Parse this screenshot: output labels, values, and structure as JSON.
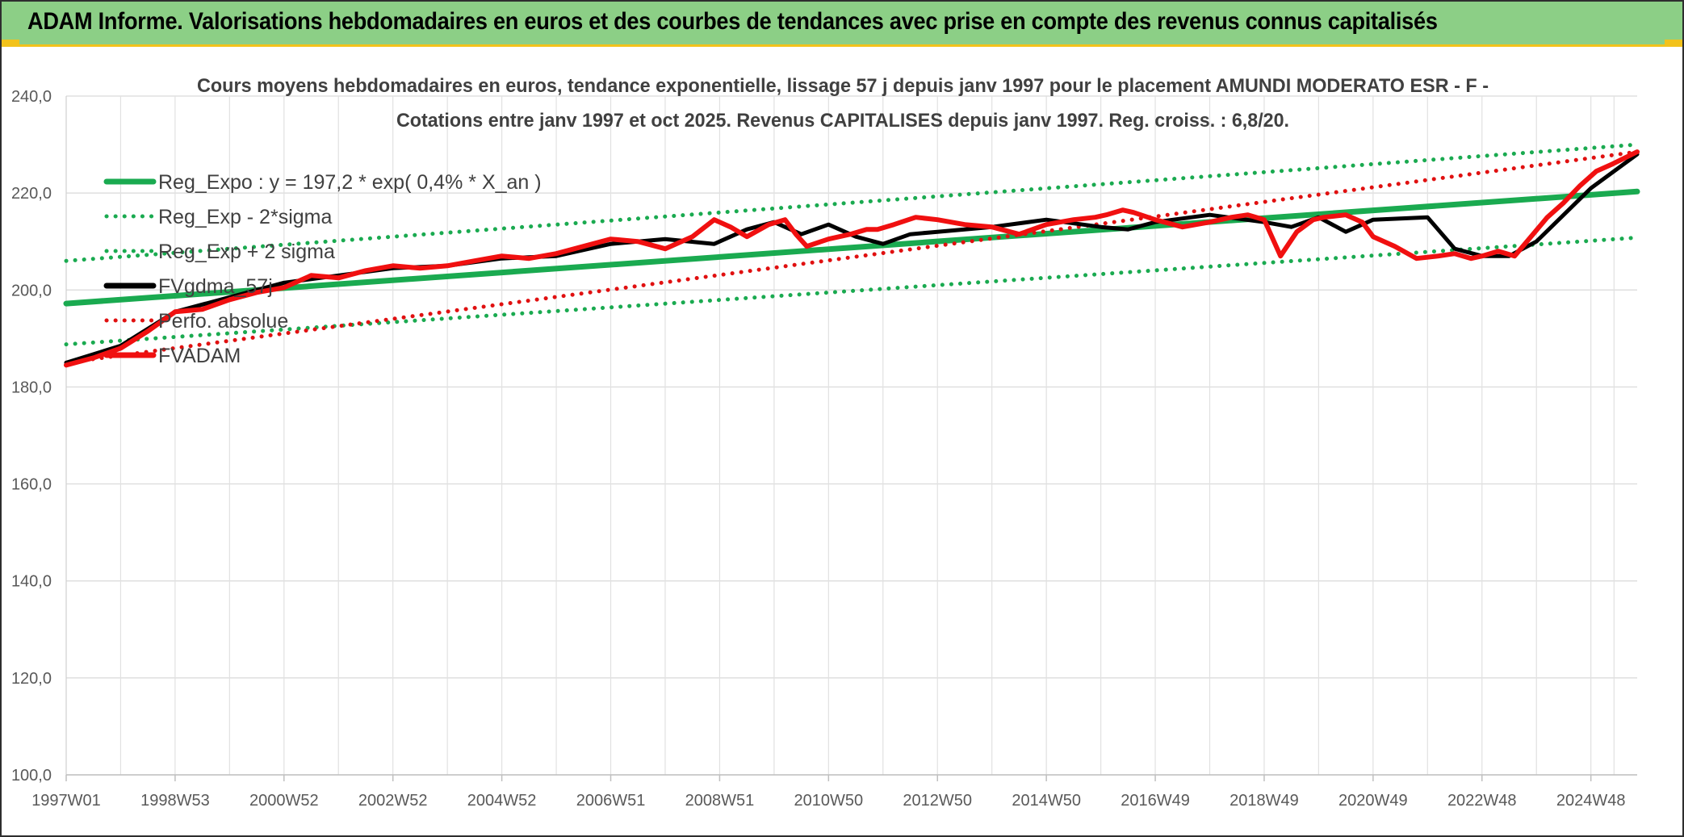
{
  "header": {
    "title": "ADAM Informe. Valorisations hebdomadaires en euros et des courbes de tendances avec prise en compte des revenus connus capitalisés"
  },
  "chart_data": {
    "type": "line",
    "title": "Cours moyens hebdomadaires en euros, tendance exponentielle, lissage 57 j depuis janv 1997 pour le placement AMUNDI MODERATO ESR - F -",
    "subtitle": "Cotations entre janv 1997 et oct 2025. Revenus CAPITALISES depuis janv 1997. Reg. croiss. : 6,8/20.",
    "xlabel": "",
    "ylabel": "",
    "ylim": [
      100,
      240
    ],
    "yticks": [
      "100,0",
      "120,0",
      "140,0",
      "160,0",
      "180,0",
      "200,0",
      "220,0",
      "240,0"
    ],
    "x_range": [
      1997.0,
      2025.85
    ],
    "xticks": [
      {
        "label": "1997W01",
        "x": 1997.0
      },
      {
        "label": "1998W53",
        "x": 1999.0
      },
      {
        "label": "2000W52",
        "x": 2001.0
      },
      {
        "label": "2002W52",
        "x": 2003.0
      },
      {
        "label": "2004W52",
        "x": 2005.0
      },
      {
        "label": "2006W51",
        "x": 2007.0
      },
      {
        "label": "2008W51",
        "x": 2009.0
      },
      {
        "label": "2010W50",
        "x": 2011.0
      },
      {
        "label": "2012W50",
        "x": 2013.0
      },
      {
        "label": "2014W50",
        "x": 2015.0
      },
      {
        "label": "2016W49",
        "x": 2017.0
      },
      {
        "label": "2018W49",
        "x": 2019.0
      },
      {
        "label": "2020W49",
        "x": 2021.0
      },
      {
        "label": "2022W48",
        "x": 2023.0
      },
      {
        "label": "2024W48",
        "x": 2025.0
      }
    ],
    "grid": true,
    "legend_position": "top-left",
    "series": [
      {
        "name": "Reg_Expo : y = 197,2 * exp( 0,4% *  X_an )",
        "color": "#1aaa50",
        "style": "solid-thick",
        "x": [
          1997.0,
          2025.85
        ],
        "values": [
          197.2,
          220.3
        ]
      },
      {
        "name": "Reg_Exp - 2*sigma",
        "color": "#1aaa50",
        "style": "dotted",
        "x": [
          1997.0,
          2025.85
        ],
        "values": [
          188.8,
          210.8
        ]
      },
      {
        "name": "Reg_Exp + 2 sigma",
        "color": "#1aaa50",
        "style": "dotted",
        "x": [
          1997.0,
          2025.85
        ],
        "values": [
          206.0,
          230.0
        ]
      },
      {
        "name": "FVgdma_57j",
        "color": "#000000",
        "style": "solid",
        "x": [
          1997.0,
          1998.0,
          1999.0,
          2000.0,
          2001.0,
          2002.0,
          2003.0,
          2004.0,
          2005.0,
          2006.0,
          2007.0,
          2008.0,
          2008.9,
          2009.5,
          2010.0,
          2010.5,
          2011.0,
          2011.5,
          2012.0,
          2012.5,
          2013.0,
          2014.0,
          2015.0,
          2016.0,
          2016.5,
          2017.0,
          2018.0,
          2019.0,
          2019.5,
          2020.0,
          2020.5,
          2021.0,
          2022.0,
          2022.5,
          2023.0,
          2023.5,
          2024.0,
          2025.0,
          2025.85
        ],
        "values": [
          185.0,
          188.5,
          195.5,
          198.5,
          201.5,
          203.0,
          204.5,
          205.0,
          206.5,
          207.0,
          209.5,
          210.5,
          209.5,
          212.5,
          214.0,
          211.5,
          213.5,
          211.0,
          209.5,
          211.5,
          212.0,
          213.0,
          214.5,
          213.0,
          212.5,
          214.0,
          215.5,
          214.0,
          213.0,
          215.0,
          212.0,
          214.5,
          215.0,
          208.5,
          207.0,
          207.0,
          210.0,
          221.0,
          228.0
        ]
      },
      {
        "name": "Perfo. absolue",
        "color": "#e01010",
        "style": "dotted",
        "x": [
          1997.0,
          2025.85
        ],
        "values": [
          185.0,
          228.5
        ]
      },
      {
        "name": "FVADAM",
        "color": "#f01010",
        "style": "solid-thick",
        "x": [
          1997.0,
          1997.5,
          1998.0,
          1998.5,
          1999.0,
          1999.5,
          2000.0,
          2000.5,
          2001.0,
          2001.5,
          2002.0,
          2002.5,
          2003.0,
          2003.5,
          2004.0,
          2004.5,
          2005.0,
          2005.5,
          2006.0,
          2006.5,
          2007.0,
          2007.5,
          2008.0,
          2008.5,
          2008.9,
          2009.2,
          2009.5,
          2009.9,
          2010.2,
          2010.4,
          2010.6,
          2011.0,
          2011.4,
          2011.7,
          2011.9,
          2012.2,
          2012.6,
          2013.0,
          2013.5,
          2014.0,
          2014.5,
          2015.0,
          2015.5,
          2015.9,
          2016.1,
          2016.4,
          2016.6,
          2017.0,
          2017.5,
          2018.0,
          2018.4,
          2018.7,
          2019.0,
          2019.3,
          2019.6,
          2019.9,
          2020.1,
          2020.5,
          2020.8,
          2021.0,
          2021.4,
          2021.8,
          2022.2,
          2022.5,
          2022.8,
          2023.0,
          2023.3,
          2023.6,
          2023.9,
          2024.2,
          2024.5,
          2024.8,
          2025.1,
          2025.4,
          2025.85
        ],
        "values": [
          184.5,
          186.0,
          188.0,
          191.5,
          195.5,
          196.0,
          198.0,
          199.5,
          200.5,
          203.0,
          202.5,
          204.0,
          205.0,
          204.5,
          205.0,
          206.0,
          207.0,
          206.5,
          207.5,
          209.0,
          210.5,
          210.0,
          208.5,
          211.0,
          214.5,
          213.0,
          211.0,
          213.5,
          214.5,
          211.5,
          209.0,
          210.5,
          211.5,
          212.5,
          212.5,
          213.5,
          215.0,
          214.5,
          213.5,
          213.0,
          211.5,
          213.5,
          214.5,
          215.0,
          215.5,
          216.5,
          216.0,
          214.5,
          213.0,
          214.0,
          215.0,
          215.5,
          214.5,
          207.0,
          212.0,
          214.5,
          215.0,
          215.5,
          214.0,
          211.0,
          209.0,
          206.5,
          207.0,
          207.5,
          206.5,
          207.0,
          208.0,
          207.0,
          211.0,
          215.0,
          218.0,
          221.5,
          224.5,
          226.0,
          228.5
        ]
      }
    ]
  }
}
